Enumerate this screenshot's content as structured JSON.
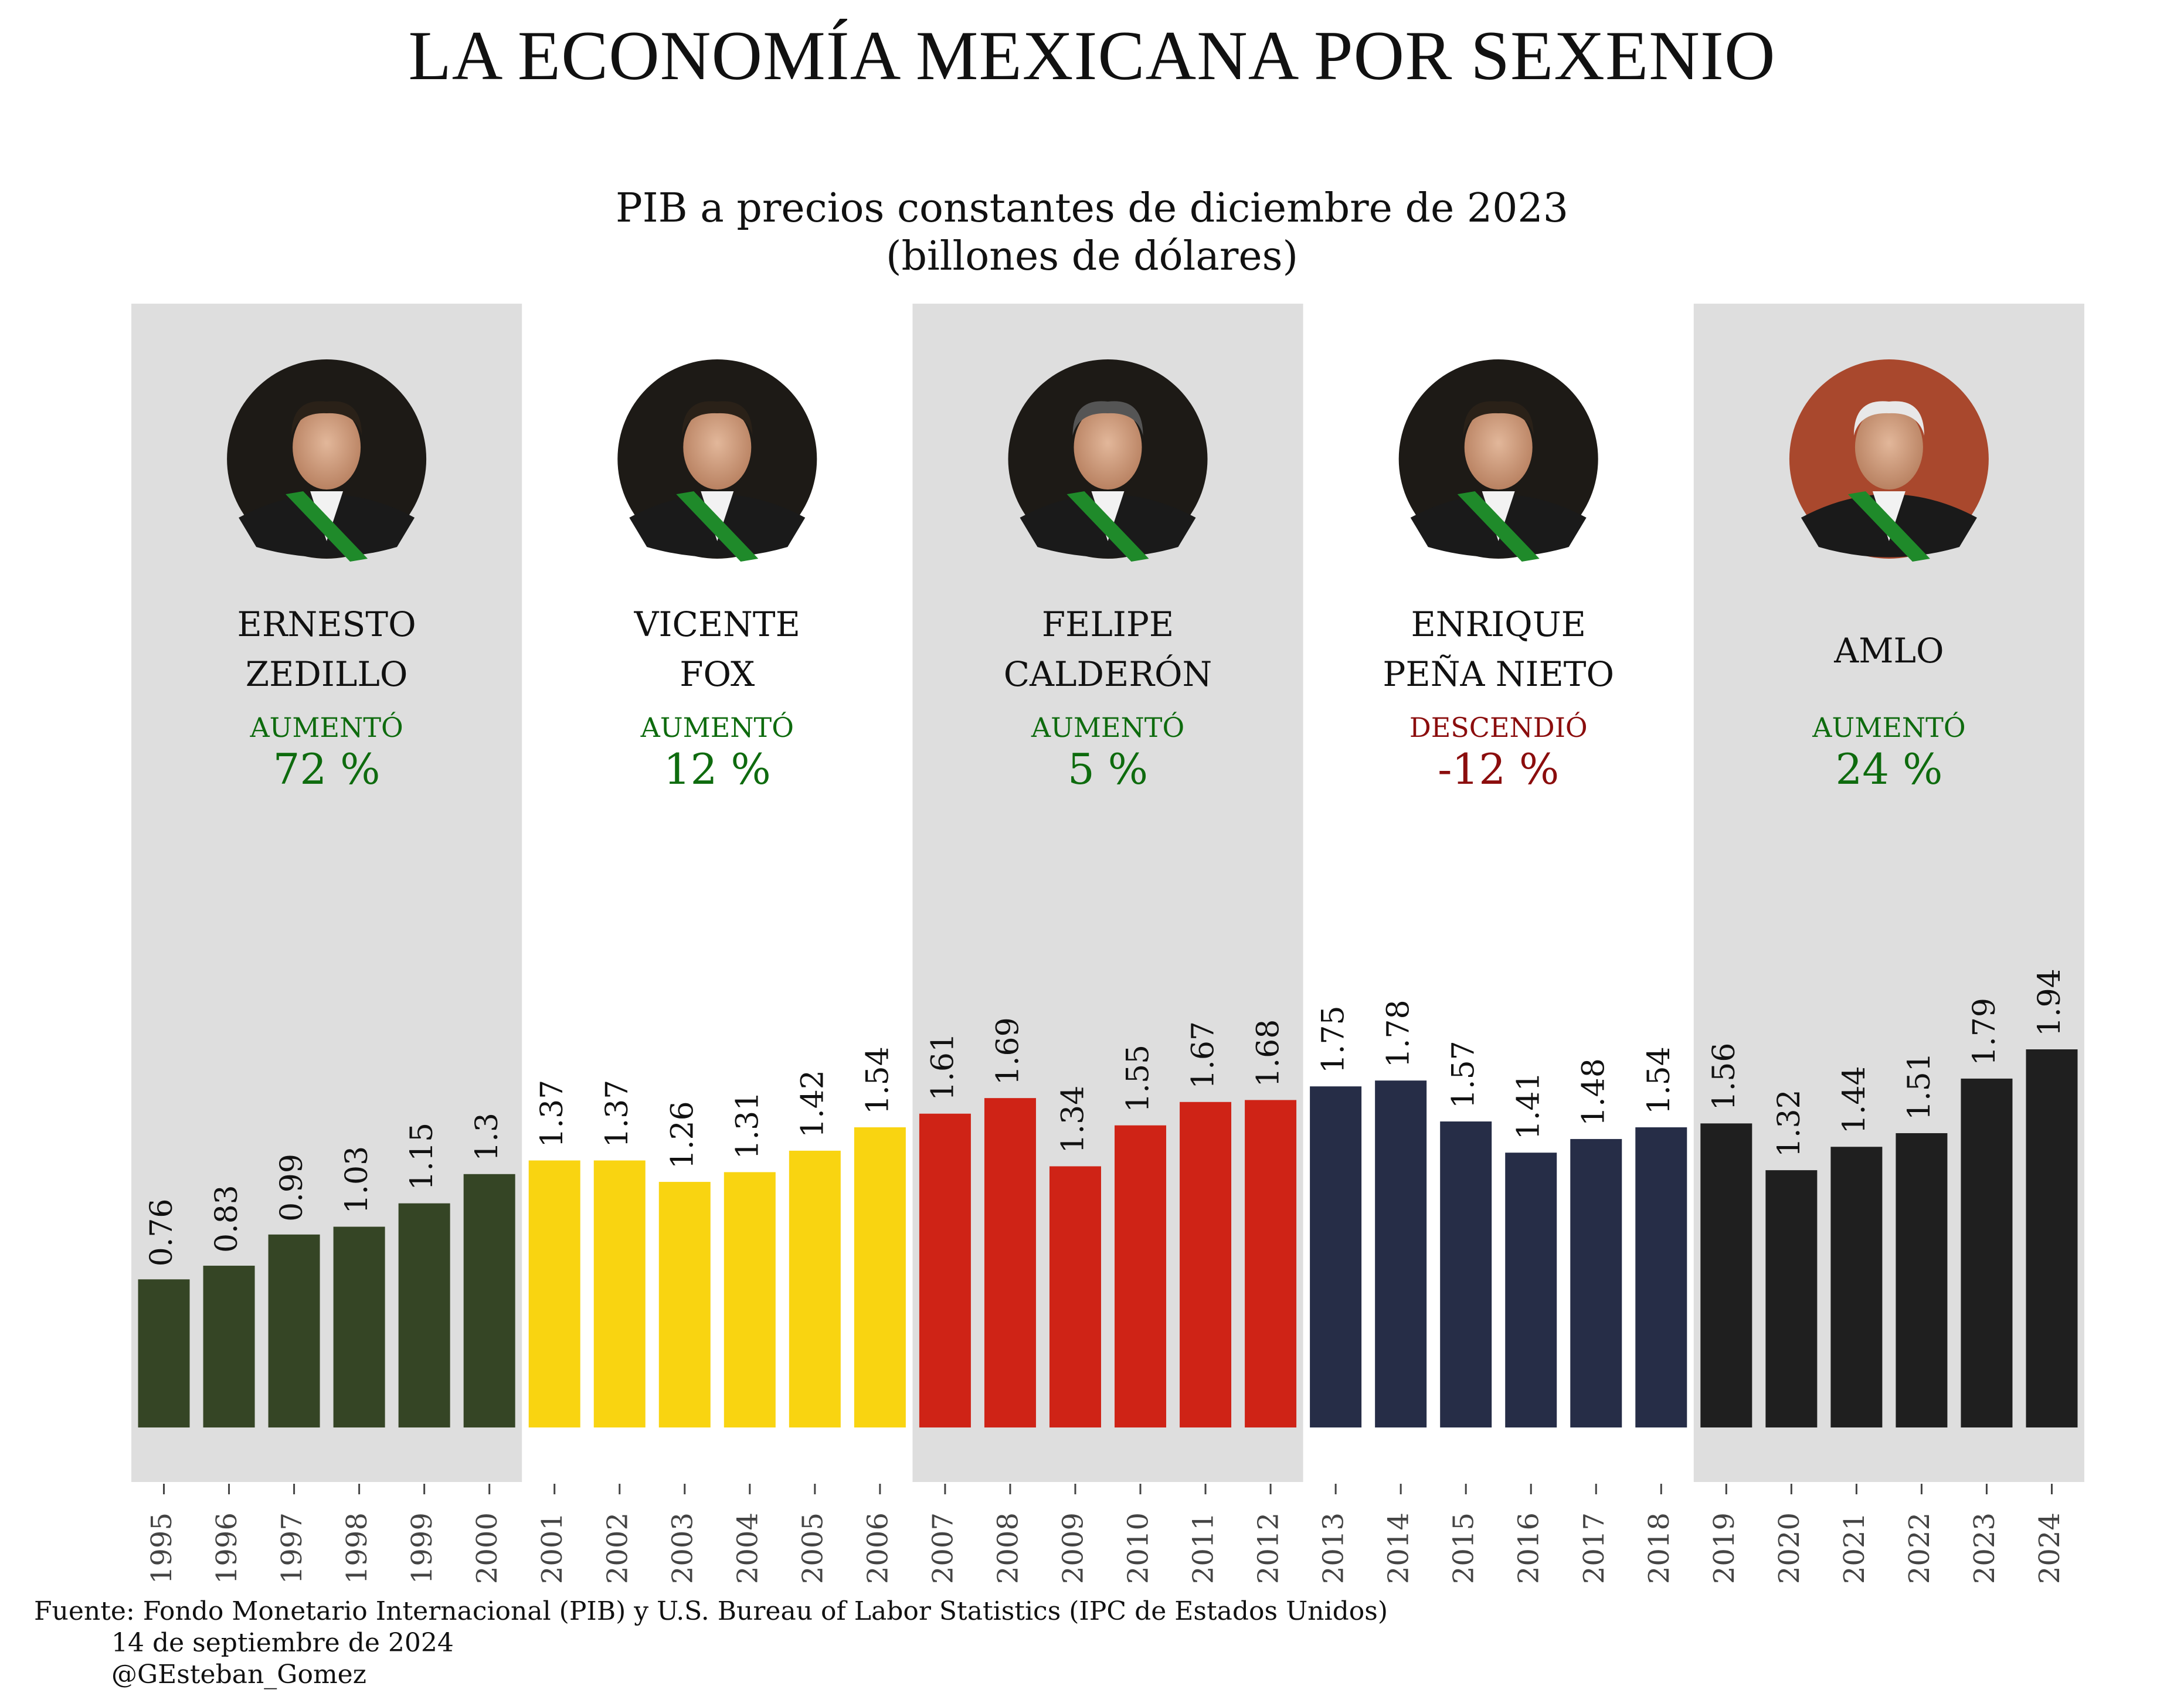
{
  "title": "LA ECONOMÍA MEXICANA POR SEXENIO",
  "subtitle_line1": "PIB a precios constantes de diciembre de 2023",
  "subtitle_line2": "(billones de dólares)",
  "source": {
    "line1": "Fuente: Fondo Monetario Internacional (PIB) y U.S. Bureau of Labor Statistics (IPC de Estados Unidos)",
    "line2": "14 de septiembre de 2024",
    "line3": "@GEsteban_Gomez"
  },
  "chart_data": {
    "type": "bar",
    "title": "LA ECONOMÍA MEXICANA POR SEXENIO",
    "subtitle": "PIB a precios constantes de diciembre de 2023 (billones de dólares)",
    "categories": [
      "1995",
      "1996",
      "1997",
      "1998",
      "1999",
      "2000",
      "2001",
      "2002",
      "2003",
      "2004",
      "2005",
      "2006",
      "2007",
      "2008",
      "2009",
      "2010",
      "2011",
      "2012",
      "2013",
      "2014",
      "2015",
      "2016",
      "2017",
      "2018",
      "2019",
      "2020",
      "2021",
      "2022",
      "2023",
      "2024"
    ],
    "values": [
      0.76,
      0.83,
      0.99,
      1.03,
      1.15,
      1.3,
      1.37,
      1.37,
      1.26,
      1.31,
      1.42,
      1.54,
      1.61,
      1.69,
      1.34,
      1.55,
      1.67,
      1.68,
      1.75,
      1.78,
      1.57,
      1.41,
      1.48,
      1.54,
      1.56,
      1.32,
      1.44,
      1.51,
      1.79,
      1.94
    ],
    "labels": [
      "0.76",
      "0.83",
      "0.99",
      "1.03",
      "1.15",
      "1.3",
      "1.37",
      "1.37",
      "1.26",
      "1.31",
      "1.42",
      "1.54",
      "1.61",
      "1.69",
      "1.34",
      "1.55",
      "1.67",
      "1.68",
      "1.75",
      "1.78",
      "1.57",
      "1.41",
      "1.48",
      "1.54",
      "1.56",
      "1.32",
      "1.44",
      "1.51",
      "1.79",
      "1.94"
    ],
    "ylim": [
      0,
      1.94
    ],
    "grid": false,
    "xlabel": "",
    "ylabel": "",
    "sexenios": [
      {
        "name_line1": "ERNESTO",
        "name_line2": "ZEDILLO",
        "change_label": "AUMENTÓ",
        "change_value": "72 %",
        "change_color": "#0e6b0e",
        "bar_color": "#354525",
        "shaded": true,
        "years": [
          0,
          1,
          2,
          3,
          4,
          5
        ],
        "photo_icon": "portrait-zedillo-icon"
      },
      {
        "name_line1": "VICENTE",
        "name_line2": "FOX",
        "change_label": "AUMENTÓ",
        "change_value": "12 %",
        "change_color": "#0e6b0e",
        "bar_color": "#f9d411",
        "shaded": false,
        "years": [
          6,
          7,
          8,
          9,
          10,
          11
        ],
        "photo_icon": "portrait-fox-icon"
      },
      {
        "name_line1": "FELIPE",
        "name_line2": "CALDERÓN",
        "change_label": "AUMENTÓ",
        "change_value": "5 %",
        "change_color": "#0e6b0e",
        "bar_color": "#cf2316",
        "shaded": true,
        "years": [
          12,
          13,
          14,
          15,
          16,
          17
        ],
        "photo_icon": "portrait-calderon-icon"
      },
      {
        "name_line1": "ENRIQUE",
        "name_line2": "PEÑA NIETO",
        "change_label": "DESCENDIÓ",
        "change_value": "-12 %",
        "change_color": "#8b0d0d",
        "bar_color": "#262d47",
        "shaded": false,
        "years": [
          18,
          19,
          20,
          21,
          22,
          23
        ],
        "photo_icon": "portrait-pena-nieto-icon"
      },
      {
        "name_line1": "AMLO",
        "name_line2": "",
        "change_label": "AUMENTÓ",
        "change_value": "24 %",
        "change_color": "#0e6b0e",
        "bar_color": "#1f1f1f",
        "shaded": true,
        "years": [
          24,
          25,
          26,
          27,
          28,
          29
        ],
        "photo_icon": "portrait-amlo-icon"
      }
    ],
    "shade_color": "#dedede"
  }
}
